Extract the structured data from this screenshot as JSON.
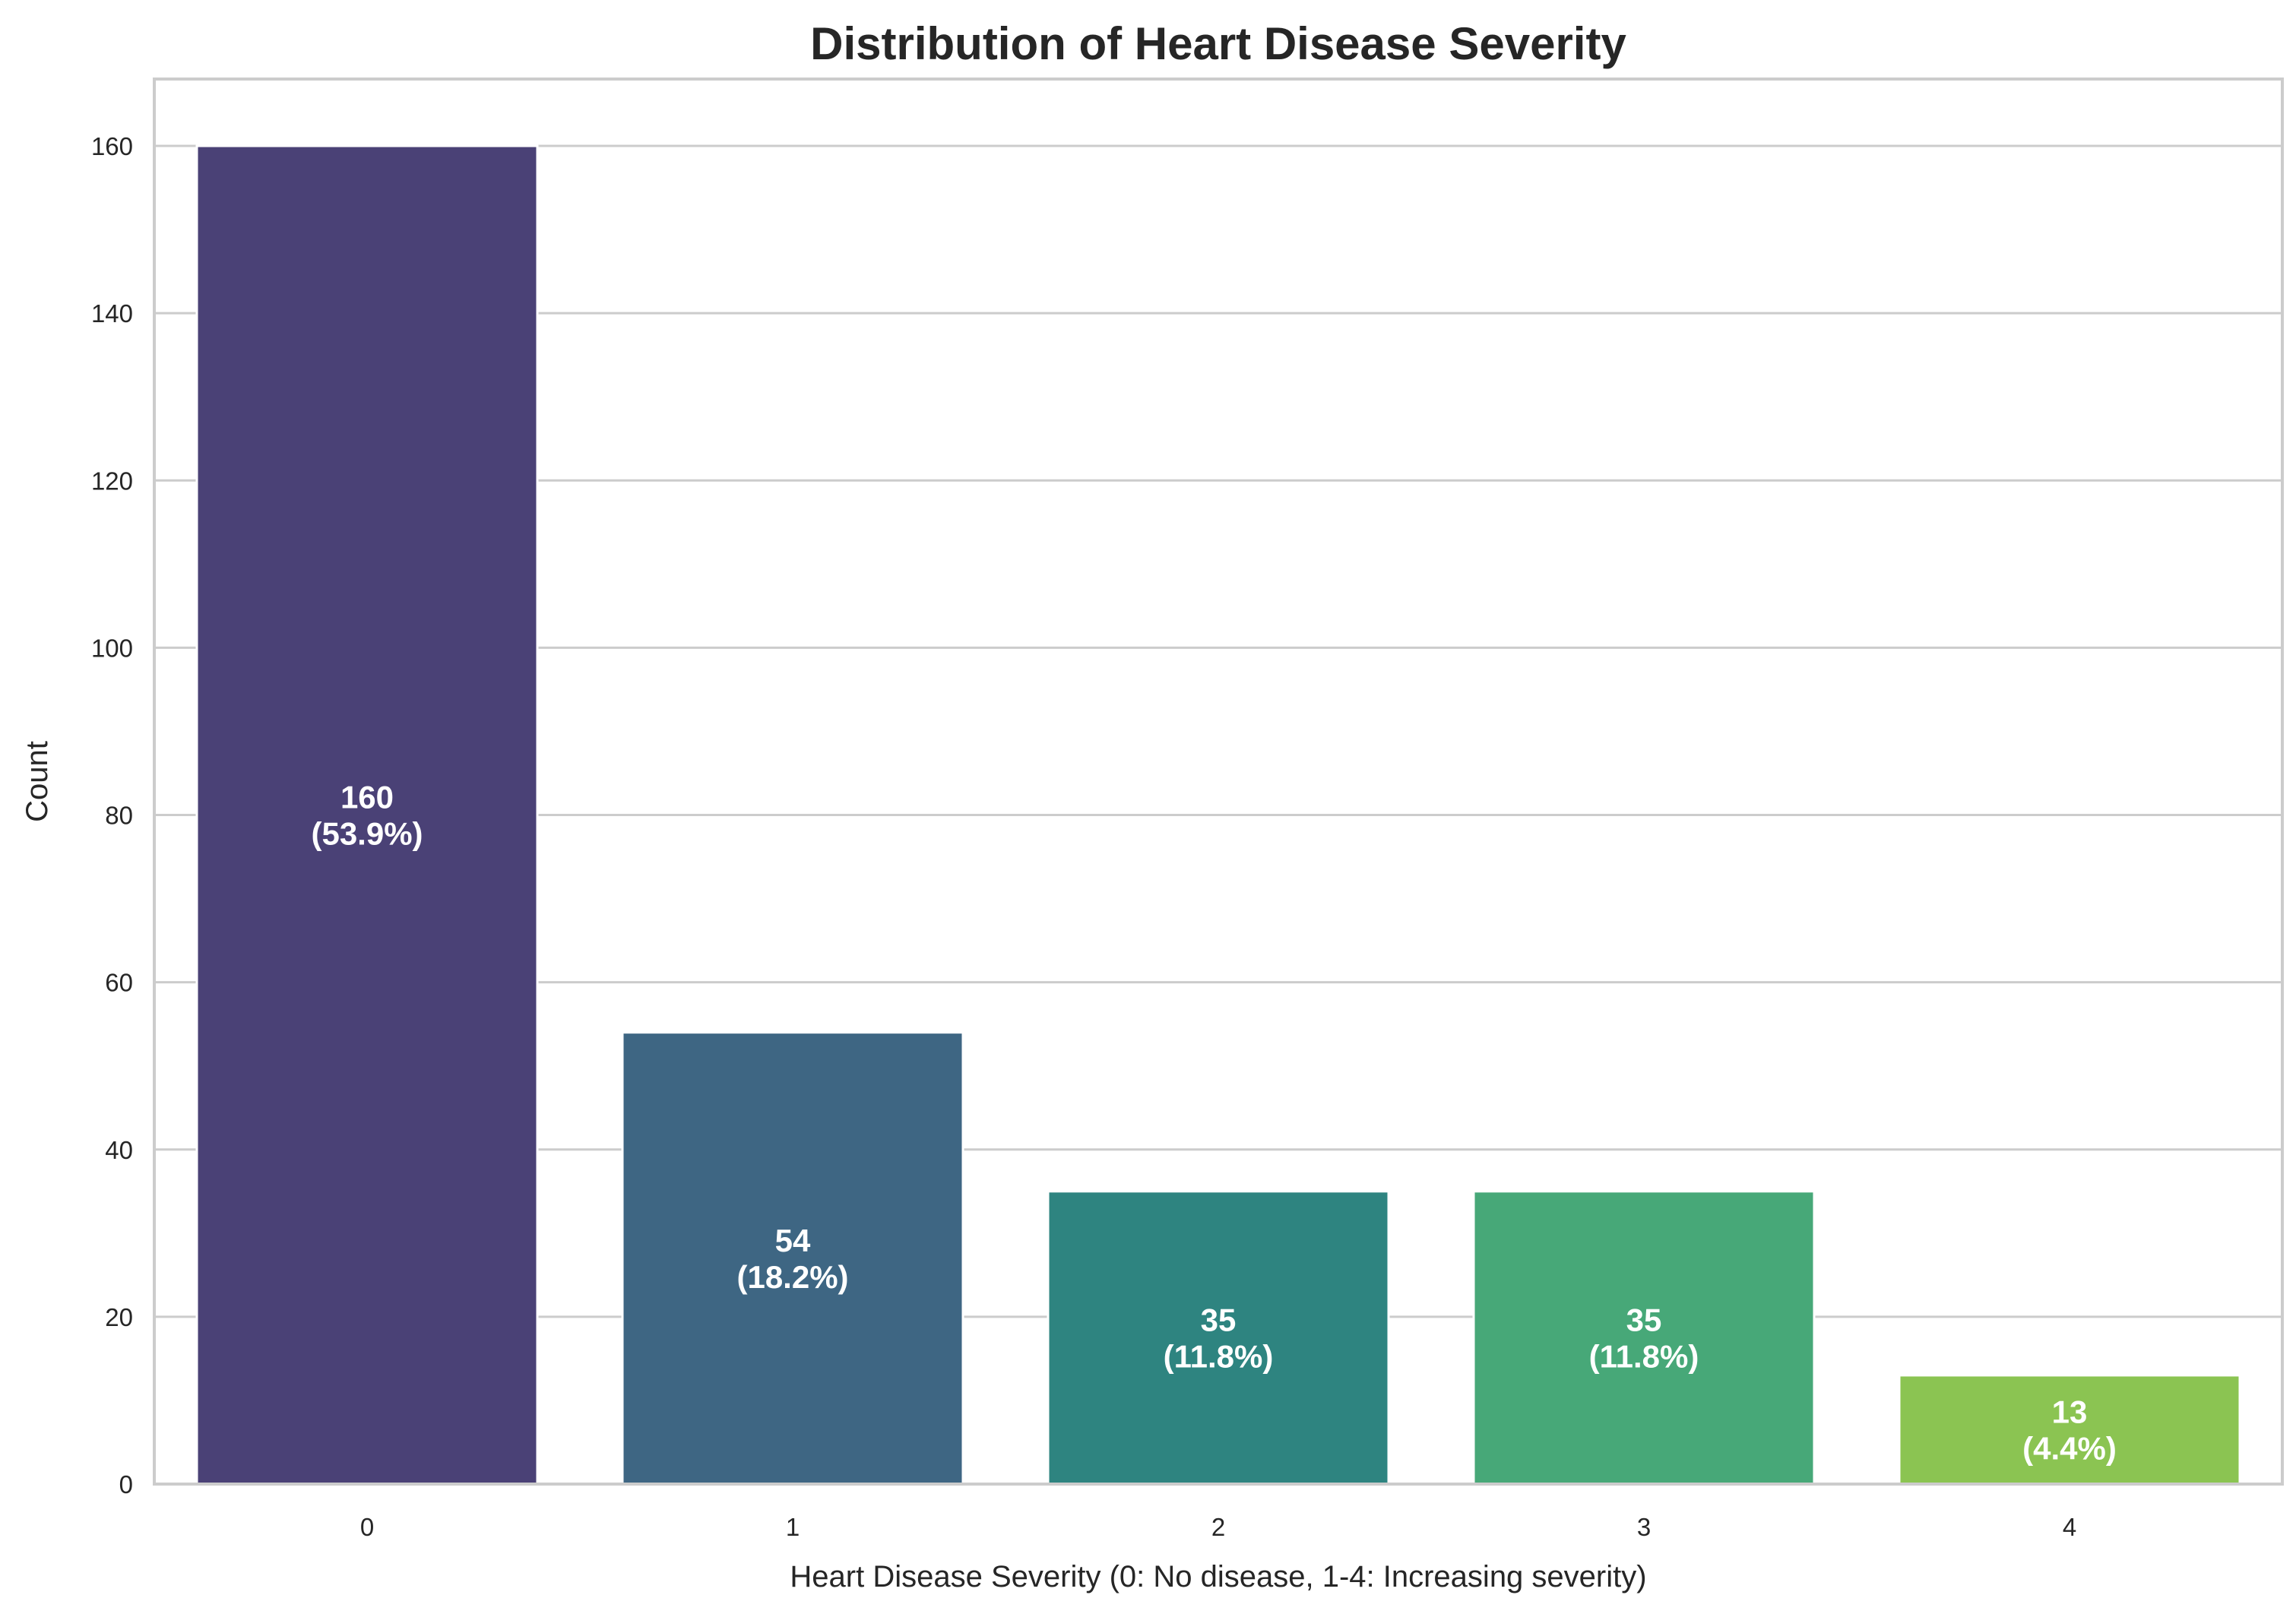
{
  "chart_data": {
    "type": "bar",
    "title": "Distribution of Heart Disease Severity",
    "xlabel": "Heart Disease Severity (0: No disease, 1-4: Increasing severity)",
    "ylabel": "Count",
    "categories": [
      "0",
      "1",
      "2",
      "3",
      "4"
    ],
    "values": [
      160,
      54,
      35,
      35,
      13
    ],
    "percentages": [
      "53.9%",
      "18.2%",
      "11.8%",
      "11.8%",
      "4.4%"
    ],
    "bar_labels": [
      [
        "160",
        "(53.9%)"
      ],
      [
        "54",
        "(18.2%)"
      ],
      [
        "35",
        "(11.8%)"
      ],
      [
        "35",
        "(11.8%)"
      ],
      [
        "13",
        "(4.4%)"
      ]
    ],
    "colors": [
      "#4a4176",
      "#3e6683",
      "#2e8480",
      "#47a878",
      "#8bc452"
    ],
    "ylim": [
      0,
      168
    ],
    "yticks": [
      0,
      20,
      40,
      60,
      80,
      100,
      120,
      140,
      160
    ],
    "grid": "horizontal"
  }
}
